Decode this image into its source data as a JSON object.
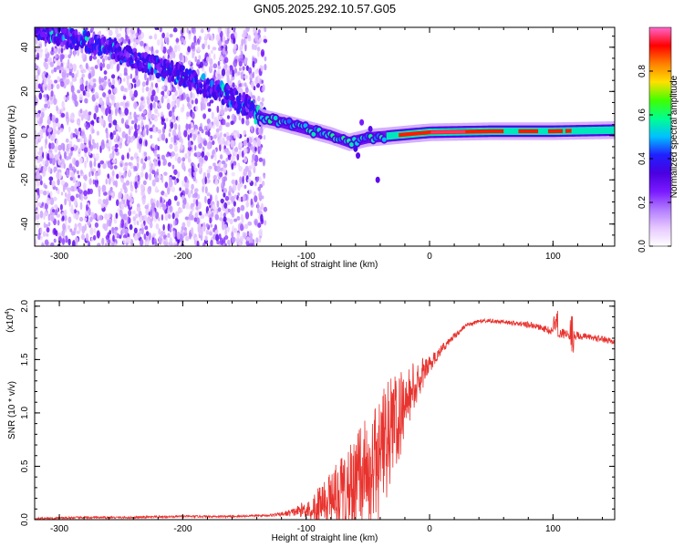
{
  "title": "GN05.2025.292.10.57.G05",
  "colors": {
    "line": "#e8332e",
    "background": "#ffffff",
    "spectrum_mid": "#6a00e8"
  },
  "chart_data": [
    {
      "type": "heatmap",
      "name": "spectrogram",
      "xlabel": "Height of straight line (km)",
      "ylabel": "Frequency (Hz)",
      "xlim": [
        -320,
        150
      ],
      "ylim": [
        -50,
        49
      ],
      "xticks": [
        -300,
        -200,
        -100,
        0,
        100
      ],
      "yticks": [
        -40,
        -20,
        0,
        20,
        40
      ],
      "colorbar": {
        "label": "Normalized spectral amplitude",
        "range": [
          0,
          1
        ],
        "ticks": [
          0.0,
          0.2,
          0.4,
          0.6,
          0.8
        ],
        "tick_labels": [
          "0.0",
          "0.2",
          "0.4",
          "0.6",
          "0.8"
        ],
        "colormap": [
          "#ffffff",
          "#e6c8ff",
          "#b27cff",
          "#7a1aff",
          "#4a00e0",
          "#2020ff",
          "#00c0ff",
          "#00ff90",
          "#40ff00",
          "#ffe000",
          "#ff8000",
          "#ff0000",
          "#ff66cc"
        ]
      },
      "ridge": [
        {
          "x": -315,
          "freq": 48
        },
        {
          "x": -290,
          "freq": 44
        },
        {
          "x": -260,
          "freq": 40
        },
        {
          "x": -230,
          "freq": 33
        },
        {
          "x": -200,
          "freq": 27
        },
        {
          "x": -170,
          "freq": 20
        },
        {
          "x": -150,
          "freq": 14
        },
        {
          "x": -135,
          "freq": 8
        },
        {
          "x": -120,
          "freq": 6
        },
        {
          "x": -100,
          "freq": 3
        },
        {
          "x": -80,
          "freq": 0
        },
        {
          "x": -65,
          "freq": -3
        },
        {
          "x": -50,
          "freq": -1
        },
        {
          "x": -30,
          "freq": 0
        },
        {
          "x": 0,
          "freq": 1.5
        },
        {
          "x": 50,
          "freq": 2
        },
        {
          "x": 100,
          "freq": 2
        },
        {
          "x": 150,
          "freq": 2.5
        }
      ]
    },
    {
      "type": "line",
      "name": "snr",
      "xlabel": "Height of straight line (km)",
      "ylabel": "SNR (10 * v/v)",
      "yscale_label": "(x10",
      "yscale_exp": "4",
      "yscale_close": ")",
      "xlim": [
        -320,
        150
      ],
      "ylim": [
        0,
        2.05
      ],
      "xticks": [
        -300,
        -200,
        -100,
        0,
        100
      ],
      "yticks": [
        0.0,
        0.5,
        1.0,
        1.5,
        2.0
      ],
      "ytick_labels": [
        "0.0",
        "0.5",
        "1.0",
        "1.5",
        "2.0"
      ],
      "series": [
        {
          "name": "SNR",
          "x": [
            -320,
            -280,
            -240,
            -200,
            -160,
            -130,
            -120,
            -110,
            -100,
            -90,
            -80,
            -70,
            -60,
            -50,
            -40,
            -30,
            -20,
            -10,
            0,
            10,
            20,
            30,
            40,
            50,
            60,
            70,
            80,
            90,
            100,
            110,
            120,
            130,
            140,
            150
          ],
          "y": [
            0.01,
            0.02,
            0.02,
            0.03,
            0.03,
            0.04,
            0.05,
            0.07,
            0.1,
            0.15,
            0.22,
            0.3,
            0.38,
            0.55,
            0.75,
            0.95,
            1.15,
            1.35,
            1.45,
            1.6,
            1.72,
            1.82,
            1.86,
            1.86,
            1.85,
            1.84,
            1.83,
            1.8,
            1.76,
            1.74,
            1.72,
            1.71,
            1.69,
            1.67
          ],
          "noise_amplitude": [
            0.01,
            0.01,
            0.01,
            0.01,
            0.01,
            0.01,
            0.02,
            0.04,
            0.08,
            0.15,
            0.25,
            0.35,
            0.4,
            0.45,
            0.45,
            0.4,
            0.25,
            0.15,
            0.08,
            0.04,
            0.03,
            0.02,
            0.02,
            0.02,
            0.02,
            0.02,
            0.03,
            0.03,
            0.04,
            0.05,
            0.04,
            0.03,
            0.03,
            0.03
          ]
        }
      ]
    }
  ]
}
